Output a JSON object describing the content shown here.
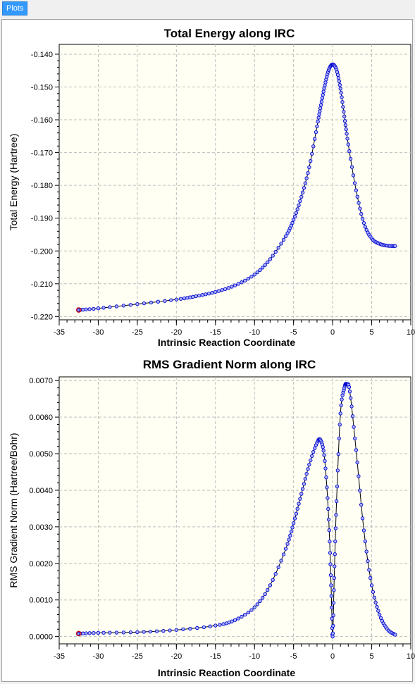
{
  "window": {
    "tab_label": "Plots"
  },
  "chart_data": [
    {
      "type": "line",
      "title": "Total Energy along IRC",
      "xlabel": "Intrinsic Reaction Coordinate",
      "ylabel": "Total Energy (Hartree)",
      "xlim": [
        -35,
        10
      ],
      "ylim": [
        -0.221,
        -0.137
      ],
      "xticks": [
        -35,
        -30,
        -25,
        -20,
        -15,
        -10,
        -5,
        0,
        5,
        10
      ],
      "xtick_labels": [
        "-35",
        "-30",
        "-25",
        "-20",
        "-15",
        "-10",
        "-5",
        "0",
        "5",
        "10"
      ],
      "yticks": [
        -0.14,
        -0.15,
        -0.16,
        -0.17,
        -0.18,
        -0.19,
        -0.2,
        -0.21,
        -0.22
      ],
      "ytick_labels": [
        "-0.140",
        "-0.150",
        "-0.160",
        "-0.170",
        "-0.180",
        "-0.190",
        "-0.200",
        "-0.210",
        "-0.220"
      ],
      "grid": true,
      "background": "#fffff4",
      "line_color": "#000000",
      "marker_color": "#0000cc",
      "marker_fill": "#aab4ff",
      "endpoint_marker_color": "#cc0000",
      "x": [
        -32.5,
        -30,
        -25,
        -20,
        -17.5,
        -15,
        -12.5,
        -10,
        -8,
        -6,
        -5,
        -4,
        -3,
        -2,
        -1.5,
        -1,
        -0.5,
        0,
        0.5,
        1,
        1.5,
        2,
        3,
        4,
        5,
        6,
        7,
        8
      ],
      "y": [
        -0.218,
        -0.2175,
        -0.2162,
        -0.2148,
        -0.2138,
        -0.2125,
        -0.2105,
        -0.2072,
        -0.2025,
        -0.1955,
        -0.1905,
        -0.1835,
        -0.1745,
        -0.162,
        -0.1555,
        -0.1495,
        -0.1448,
        -0.1431,
        -0.1448,
        -0.1505,
        -0.159,
        -0.1675,
        -0.1815,
        -0.1915,
        -0.1962,
        -0.1978,
        -0.1984,
        -0.1985
      ]
    },
    {
      "type": "line",
      "title": "RMS Gradient Norm along IRC",
      "xlabel": "Intrinsic Reaction Coordinate",
      "ylabel": "RMS Gradient Norm (Hartree/Bohr)",
      "xlim": [
        -35,
        10
      ],
      "ylim": [
        -0.0002,
        0.0071
      ],
      "xticks": [
        -35,
        -30,
        -25,
        -20,
        -15,
        -10,
        -5,
        0,
        5,
        10
      ],
      "xtick_labels": [
        "-35",
        "-30",
        "-25",
        "-20",
        "-15",
        "-10",
        "-5",
        "0",
        "5",
        "10"
      ],
      "yticks": [
        0,
        0.001,
        0.002,
        0.003,
        0.004,
        0.005,
        0.006,
        0.007
      ],
      "ytick_labels": [
        "0.0000",
        "0.0010",
        "0.0020",
        "0.0030",
        "0.0040",
        "0.0050",
        "0.0060",
        "0.0070"
      ],
      "grid": true,
      "background": "#fffff4",
      "line_color": "#000000",
      "marker_color": "#0000cc",
      "marker_fill": "#aab4ff",
      "endpoint_marker_color": "#cc0000",
      "x": [
        -32.5,
        -30,
        -25,
        -20,
        -15,
        -12.5,
        -10,
        -8,
        -6,
        -5,
        -4,
        -3,
        -2,
        -1.5,
        -1,
        -0.5,
        -0.2,
        0,
        0.2,
        0.5,
        1,
        1.5,
        1.8,
        2.2,
        3,
        4,
        5,
        6,
        7,
        8
      ],
      "y": [
        8e-05,
        0.0001,
        0.00012,
        0.00018,
        0.0003,
        0.00045,
        0.0008,
        0.0014,
        0.0024,
        0.0031,
        0.0039,
        0.0047,
        0.0053,
        0.00535,
        0.0048,
        0.0032,
        0.0014,
        0.0,
        0.0016,
        0.0037,
        0.0061,
        0.0068,
        0.0069,
        0.0067,
        0.0051,
        0.0029,
        0.0014,
        0.0006,
        0.0002,
        5e-05
      ]
    }
  ]
}
